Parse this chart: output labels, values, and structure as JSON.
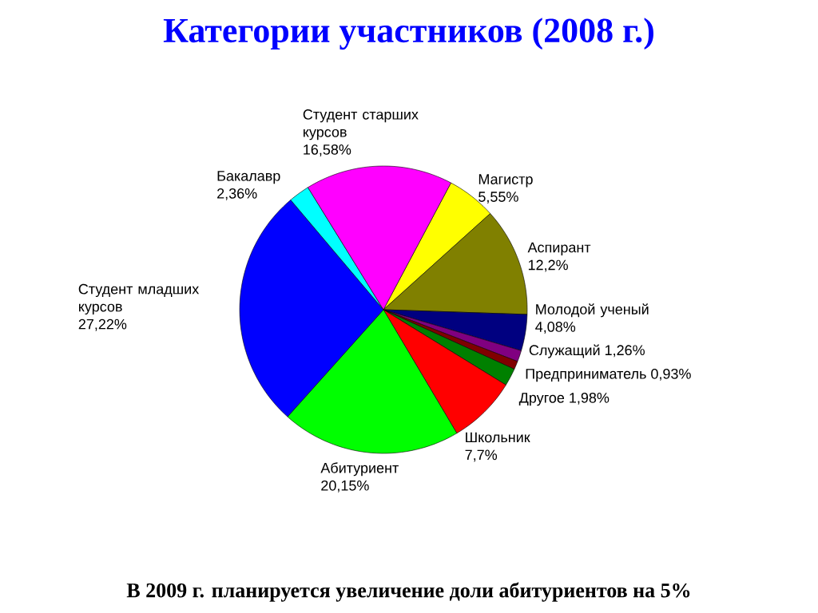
{
  "chart_data": {
    "type": "pie",
    "title": "Категории участников (2008 г.)",
    "categories": [
      "Магистр",
      "Аспирант",
      "Молодой ученый",
      "Служащий",
      "Предприниматель",
      "Другое",
      "Школьник",
      "Абитуриент",
      "Студент младших курсов",
      "Бакалавр",
      "Студент старших курсов"
    ],
    "values": [
      5.55,
      12.2,
      4.08,
      1.26,
      0.93,
      1.98,
      7.7,
      20.15,
      27.22,
      2.36,
      16.58
    ],
    "value_labels": [
      "5,55%",
      "12,2%",
      "4,08%",
      "1,26%",
      "0,93%",
      "1,98%",
      "7,7%",
      "20,15%",
      "27,22%",
      "2,36%",
      "16,58%"
    ],
    "colors": [
      "#ffff00",
      "#808000",
      "#000080",
      "#800080",
      "#800000",
      "#008000",
      "#ff0000",
      "#00ff00",
      "#0000ff",
      "#00ffff",
      "#ff00ff"
    ],
    "annotations": [
      "В 2009 г. планируется увеличение доли абитуриентов на 5%"
    ]
  }
}
